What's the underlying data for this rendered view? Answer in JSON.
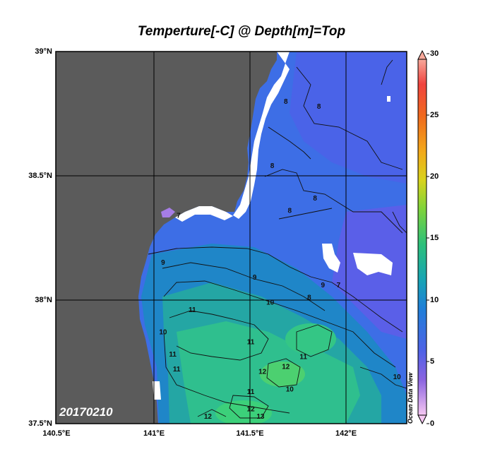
{
  "title": "Temperture[-C] @ Depth[m]=Top",
  "date_label": "20170210",
  "watermark": "Ocean Data View",
  "y_axis": {
    "ticks": [
      "39°N",
      "38.5°N",
      "38°N",
      "37.5°N"
    ]
  },
  "x_axis": {
    "ticks": [
      "140.5°E",
      "141°E",
      "141.5°E",
      "142°E"
    ]
  },
  "colorbar": {
    "ticks": [
      "30",
      "25",
      "20",
      "15",
      "10",
      "5",
      "0"
    ],
    "range": [
      0,
      30
    ]
  },
  "map_extent": {
    "lon": [
      140.5,
      142.3
    ],
    "lat": [
      37.5,
      39.0
    ]
  },
  "contour_labels": [
    {
      "text": "8",
      "lon": 141.68,
      "lat": 38.79
    },
    {
      "text": "8",
      "lon": 141.85,
      "lat": 38.77
    },
    {
      "text": "8",
      "lon": 141.61,
      "lat": 38.53
    },
    {
      "text": "8",
      "lon": 141.7,
      "lat": 38.35
    },
    {
      "text": "8",
      "lon": 141.83,
      "lat": 38.4
    },
    {
      "text": "7",
      "lon": 141.13,
      "lat": 38.33
    },
    {
      "text": "7",
      "lon": 141.95,
      "lat": 38.05
    },
    {
      "text": "8",
      "lon": 141.8,
      "lat": 38.0
    },
    {
      "text": "9",
      "lon": 141.05,
      "lat": 38.14
    },
    {
      "text": "9",
      "lon": 141.52,
      "lat": 38.08
    },
    {
      "text": "9",
      "lon": 141.87,
      "lat": 38.05
    },
    {
      "text": "10",
      "lon": 141.6,
      "lat": 37.98
    },
    {
      "text": "10",
      "lon": 141.05,
      "lat": 37.86
    },
    {
      "text": "11",
      "lon": 141.2,
      "lat": 37.95
    },
    {
      "text": "11",
      "lon": 141.5,
      "lat": 37.82
    },
    {
      "text": "11",
      "lon": 141.1,
      "lat": 37.77
    },
    {
      "text": "11",
      "lon": 141.12,
      "lat": 37.71
    },
    {
      "text": "11",
      "lon": 141.77,
      "lat": 37.76
    },
    {
      "text": "12",
      "lon": 141.68,
      "lat": 37.72
    },
    {
      "text": "12",
      "lon": 141.56,
      "lat": 37.7
    },
    {
      "text": "11",
      "lon": 141.5,
      "lat": 37.62
    },
    {
      "text": "10",
      "lon": 141.7,
      "lat": 37.63
    },
    {
      "text": "12",
      "lon": 141.5,
      "lat": 37.55
    },
    {
      "text": "13",
      "lon": 141.55,
      "lat": 37.52
    },
    {
      "text": "12",
      "lon": 141.28,
      "lat": 37.52
    },
    {
      "text": "10",
      "lon": 142.25,
      "lat": 37.68
    }
  ]
}
